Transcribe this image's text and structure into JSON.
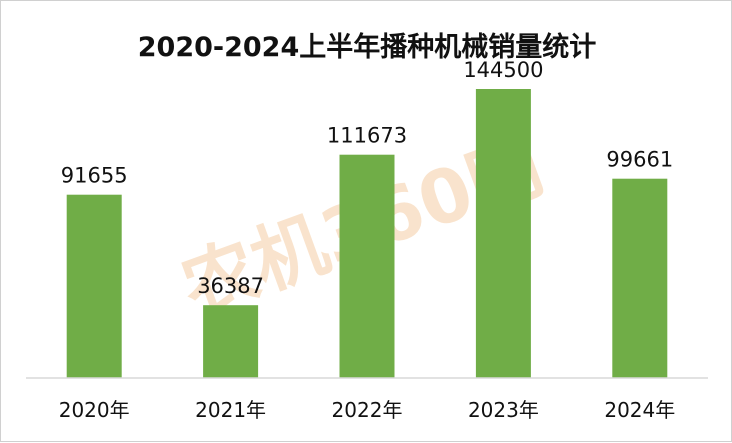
{
  "chart_data": {
    "type": "bar",
    "title": "2020-2024上半年播种机械销量统计",
    "categories": [
      "2020年",
      "2021年",
      "2022年",
      "2023年",
      "2024年"
    ],
    "values": [
      91655,
      36387,
      111673,
      144500,
      99661
    ],
    "data_labels": [
      "91655",
      "36387",
      "111673",
      "144500",
      "99661"
    ],
    "ylim": [
      0,
      160000
    ],
    "grid": false,
    "legend": "none",
    "bar_color": "#70ad47",
    "axis_color": "#d9d9d9"
  },
  "watermark": {
    "text": "农机360网",
    "color": "#f6d9b8"
  }
}
